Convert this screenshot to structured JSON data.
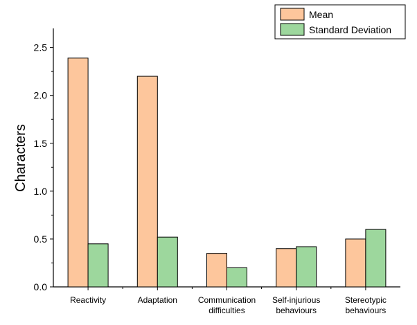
{
  "chart_data": {
    "type": "bar",
    "title": "",
    "xlabel": "",
    "ylabel": "Characters",
    "ylim": [
      0,
      2.7
    ],
    "yticks": [
      "0.0",
      "0.5",
      "1.0",
      "1.5",
      "2.0",
      "2.5"
    ],
    "grid": false,
    "legend_position": "top-right",
    "categories": [
      [
        "Reactivity"
      ],
      [
        "Adaptation"
      ],
      [
        "Communication",
        "difficulties"
      ],
      [
        "Self-injurious",
        "behaviours"
      ],
      [
        "Stereotypic",
        "behaviours"
      ]
    ],
    "series": [
      {
        "name": "Mean",
        "color": "#fdc69c",
        "values": [
          2.39,
          2.2,
          0.35,
          0.4,
          0.5
        ]
      },
      {
        "name": "Standard Deviation",
        "color": "#9dd79d",
        "values": [
          0.45,
          0.52,
          0.2,
          0.42,
          0.6
        ]
      }
    ]
  }
}
